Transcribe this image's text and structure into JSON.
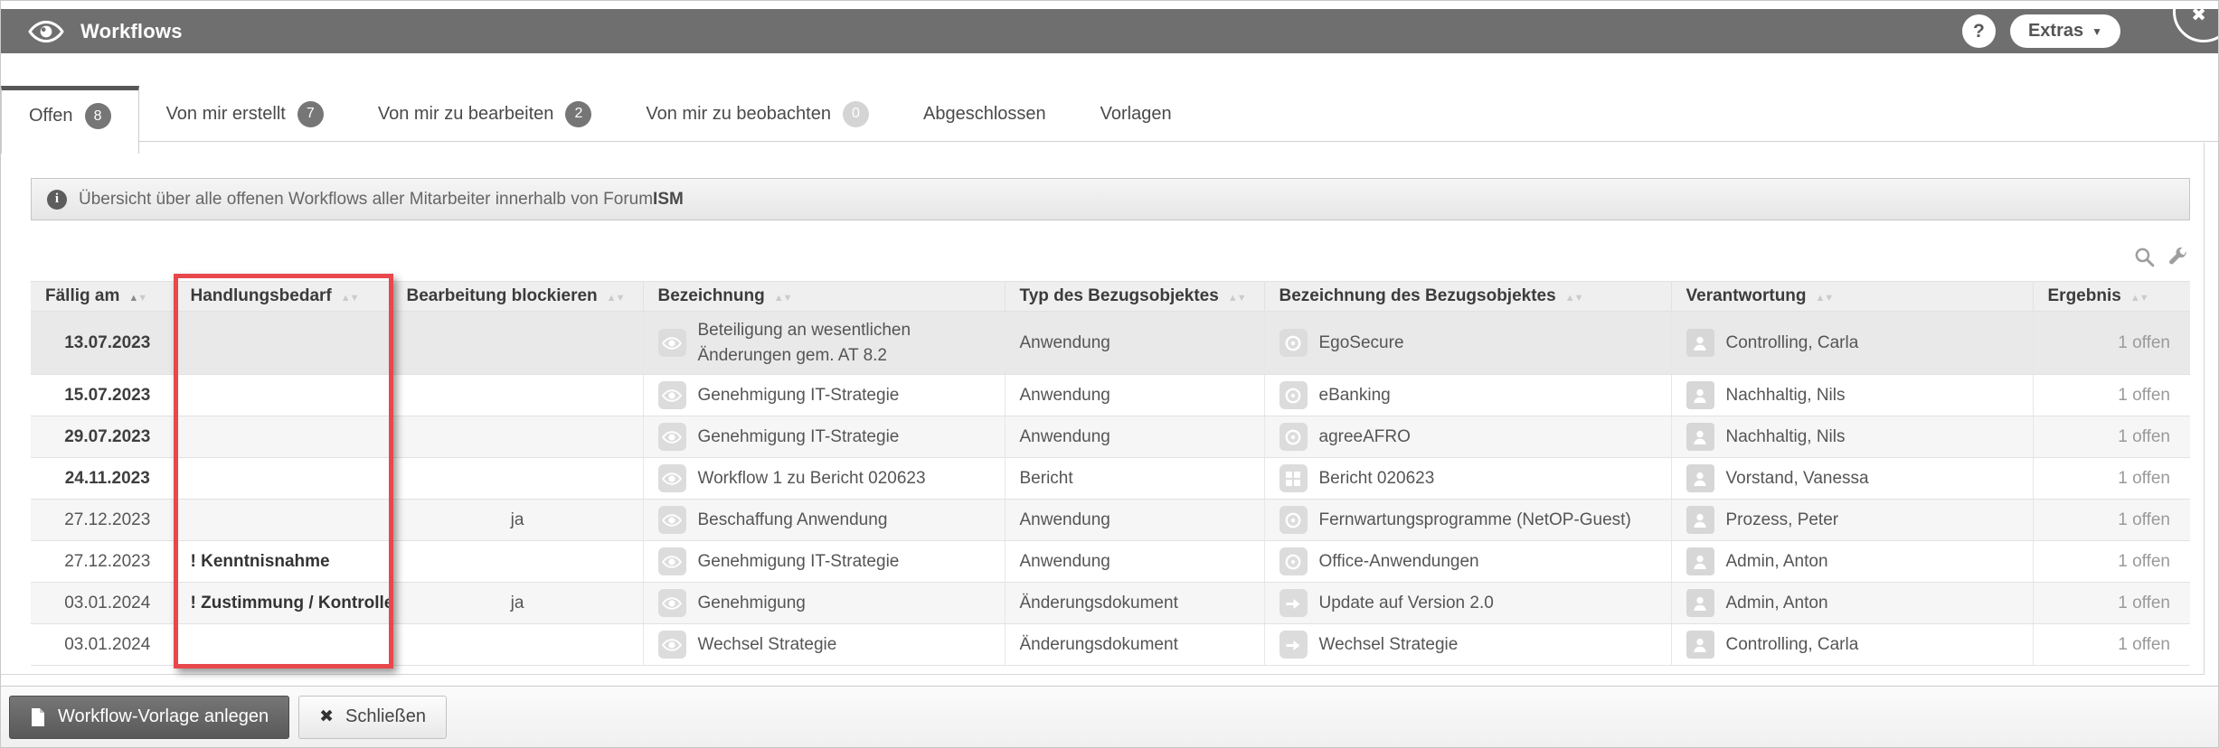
{
  "window": {
    "close_glyph": "✖"
  },
  "header": {
    "title": "Workflows",
    "help_label": "?",
    "extras_label": "Extras",
    "extras_caret": "▼"
  },
  "tabs": [
    {
      "label": "Offen",
      "badge": "8",
      "badge_style": "dark",
      "active": true
    },
    {
      "label": "Von mir erstellt",
      "badge": "7",
      "badge_style": "dark",
      "active": false
    },
    {
      "label": "Von mir zu bearbeiten",
      "badge": "2",
      "badge_style": "dark",
      "active": false
    },
    {
      "label": "Von mir zu beobachten",
      "badge": "0",
      "badge_style": "light",
      "active": false
    },
    {
      "label": "Abgeschlossen",
      "badge": null,
      "active": false
    },
    {
      "label": "Vorlagen",
      "badge": null,
      "active": false
    }
  ],
  "info_bar": {
    "text": "Übersicht über alle offenen Workflows aller Mitarbeiter innerhalb von Forum",
    "text_bold": "ISM"
  },
  "table": {
    "columns": [
      {
        "label": "Fällig am",
        "sort": "asc"
      },
      {
        "label": "Handlungsbedarf",
        "sort": "none"
      },
      {
        "label": "Bearbeitung blockieren",
        "sort": "none"
      },
      {
        "label": "Bezeichnung",
        "sort": "none"
      },
      {
        "label": "Typ des Bezugsobjektes",
        "sort": "none"
      },
      {
        "label": "Bezeichnung des Bezugsobjektes",
        "sort": "none"
      },
      {
        "label": "Verantwortung",
        "sort": "none"
      },
      {
        "label": "Ergebnis",
        "sort": "none"
      }
    ],
    "rows": [
      {
        "faellig_am": "13.07.2023",
        "date_bold": true,
        "handlungsbedarf": "",
        "bearbeitung_blockieren": "",
        "bezeichnung": "Beteiligung an wesentlichen Änderungen gem. AT 8.2",
        "typ": "Anwendung",
        "bezugsobjekt": "EgoSecure",
        "objekt_icon": "anwendung-icon",
        "verantwortung": "Controlling, Carla",
        "ergebnis": "1 offen"
      },
      {
        "faellig_am": "15.07.2023",
        "date_bold": true,
        "handlungsbedarf": "",
        "bearbeitung_blockieren": "",
        "bezeichnung": "Genehmigung IT-Strategie",
        "typ": "Anwendung",
        "bezugsobjekt": "eBanking",
        "objekt_icon": "anwendung-icon",
        "verantwortung": "Nachhaltig, Nils",
        "ergebnis": "1 offen"
      },
      {
        "faellig_am": "29.07.2023",
        "date_bold": true,
        "handlungsbedarf": "",
        "bearbeitung_blockieren": "",
        "bezeichnung": "Genehmigung IT-Strategie",
        "typ": "Anwendung",
        "bezugsobjekt": "agreeAFRO",
        "objekt_icon": "anwendung-icon",
        "verantwortung": "Nachhaltig, Nils",
        "ergebnis": "1 offen"
      },
      {
        "faellig_am": "24.11.2023",
        "date_bold": true,
        "handlungsbedarf": "",
        "bearbeitung_blockieren": "",
        "bezeichnung": "Workflow 1 zu Bericht 020623",
        "typ": "Bericht",
        "bezugsobjekt": "Bericht 020623",
        "objekt_icon": "bericht-icon",
        "verantwortung": "Vorstand, Vanessa",
        "ergebnis": "1 offen"
      },
      {
        "faellig_am": "27.12.2023",
        "date_bold": false,
        "handlungsbedarf": "",
        "bearbeitung_blockieren": "ja",
        "bezeichnung": "Beschaffung Anwendung",
        "typ": "Anwendung",
        "bezugsobjekt": "Fernwartungsprogramme (NetOP-Guest)",
        "objekt_icon": "anwendung-icon",
        "verantwortung": "Prozess, Peter",
        "ergebnis": "1 offen"
      },
      {
        "faellig_am": "27.12.2023",
        "date_bold": false,
        "handlungsbedarf": "! Kenntnisnahme",
        "bearbeitung_blockieren": "",
        "bezeichnung": "Genehmigung IT-Strategie",
        "typ": "Anwendung",
        "bezugsobjekt": "Office-Anwendungen",
        "objekt_icon": "anwendung-icon",
        "verantwortung": "Admin, Anton",
        "ergebnis": "1 offen"
      },
      {
        "faellig_am": "03.01.2024",
        "date_bold": false,
        "handlungsbedarf": "! Zustimmung / Kontrolle",
        "bearbeitung_blockieren": "ja",
        "bezeichnung": "Genehmigung",
        "typ": "Änderungsdokument",
        "bezugsobjekt": "Update auf Version 2.0",
        "objekt_icon": "aenderung-icon",
        "verantwortung": "Admin, Anton",
        "ergebnis": "1 offen"
      },
      {
        "faellig_am": "03.01.2024",
        "date_bold": false,
        "handlungsbedarf": "",
        "bearbeitung_blockieren": "",
        "bezeichnung": "Wechsel Strategie",
        "typ": "Änderungsdokument",
        "bezugsobjekt": "Wechsel Strategie",
        "objekt_icon": "aenderung-icon",
        "verantwortung": "Controlling, Carla",
        "ergebnis": "1 offen"
      }
    ]
  },
  "highlight": {
    "column": "Handlungsbedarf",
    "color": "#e8474b"
  },
  "footer": {
    "buttons": [
      {
        "label": "Workflow-Vorlage anlegen",
        "icon": "document-icon",
        "style": "dark"
      },
      {
        "label": "Schließen",
        "icon": "close-icon",
        "style": "light",
        "icon_glyph": "✖"
      }
    ]
  },
  "colors": {
    "titlebar": "#6f6f6f",
    "active_tab_border": "#565758",
    "highlight_red": "#e8474b"
  }
}
